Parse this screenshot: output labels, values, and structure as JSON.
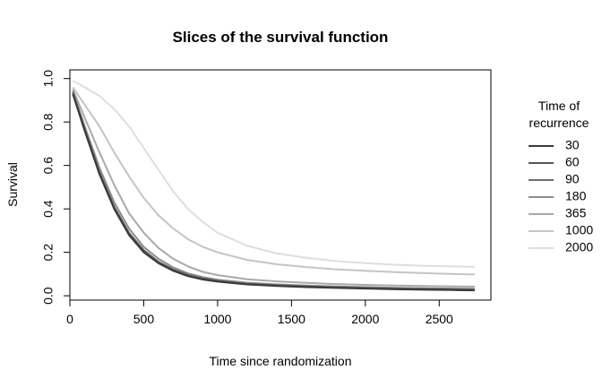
{
  "chart_data": {
    "type": "line",
    "title": "Slices of the survival function",
    "xlabel": "Time since randomization",
    "ylabel": "Survival",
    "xlim": [
      0,
      2850
    ],
    "ylim": [
      -0.02,
      1.04
    ],
    "xticks": [
      0,
      500,
      1000,
      1500,
      2000,
      2500
    ],
    "yticks": [
      0.0,
      0.2,
      0.4,
      0.6,
      0.8,
      1.0
    ],
    "xtick_labels": [
      "0",
      "500",
      "1000",
      "1500",
      "2000",
      "2500"
    ],
    "ytick_labels": [
      "0.0",
      "0.2",
      "0.4",
      "0.6",
      "0.8",
      "1.0"
    ],
    "grid": false,
    "legend": {
      "title_line1": "Time of",
      "title_line2": "recurrence",
      "position": "right"
    },
    "x": [
      20,
      100,
      200,
      300,
      400,
      500,
      600,
      700,
      800,
      900,
      1000,
      1200,
      1400,
      1600,
      1800,
      2000,
      2200,
      2400,
      2600,
      2740
    ],
    "series": [
      {
        "name": "30",
        "color": "#3a3a3a",
        "values": [
          0.93,
          0.76,
          0.56,
          0.4,
          0.28,
          0.2,
          0.15,
          0.115,
          0.09,
          0.075,
          0.065,
          0.052,
          0.045,
          0.04,
          0.036,
          0.033,
          0.03,
          0.028,
          0.026,
          0.025
        ]
      },
      {
        "name": "60",
        "color": "#555555",
        "values": [
          0.93,
          0.765,
          0.565,
          0.405,
          0.285,
          0.205,
          0.153,
          0.118,
          0.093,
          0.078,
          0.067,
          0.054,
          0.047,
          0.042,
          0.038,
          0.035,
          0.032,
          0.03,
          0.028,
          0.027
        ]
      },
      {
        "name": "90",
        "color": "#6e6e6e",
        "values": [
          0.94,
          0.77,
          0.57,
          0.41,
          0.29,
          0.21,
          0.157,
          0.121,
          0.096,
          0.08,
          0.069,
          0.056,
          0.049,
          0.044,
          0.04,
          0.037,
          0.034,
          0.032,
          0.03,
          0.029
        ]
      },
      {
        "name": "180",
        "color": "#8c8c8c",
        "values": [
          0.94,
          0.78,
          0.59,
          0.43,
          0.31,
          0.225,
          0.17,
          0.13,
          0.103,
          0.086,
          0.074,
          0.06,
          0.052,
          0.047,
          0.043,
          0.04,
          0.037,
          0.035,
          0.033,
          0.032
        ]
      },
      {
        "name": "365",
        "color": "#a9a9a9",
        "values": [
          0.95,
          0.82,
          0.66,
          0.51,
          0.38,
          0.29,
          0.22,
          0.17,
          0.135,
          0.11,
          0.095,
          0.076,
          0.066,
          0.059,
          0.054,
          0.05,
          0.047,
          0.045,
          0.043,
          0.042
        ]
      },
      {
        "name": "1000",
        "color": "#c4c4c4",
        "values": [
          0.96,
          0.88,
          0.78,
          0.66,
          0.55,
          0.45,
          0.37,
          0.31,
          0.26,
          0.225,
          0.2,
          0.165,
          0.145,
          0.132,
          0.122,
          0.115,
          0.109,
          0.104,
          0.1,
          0.098
        ]
      },
      {
        "name": "2000",
        "color": "#dedede",
        "values": [
          0.99,
          0.96,
          0.92,
          0.86,
          0.78,
          0.68,
          0.58,
          0.48,
          0.4,
          0.34,
          0.29,
          0.23,
          0.195,
          0.175,
          0.16,
          0.15,
          0.143,
          0.138,
          0.135,
          0.133
        ]
      }
    ]
  }
}
